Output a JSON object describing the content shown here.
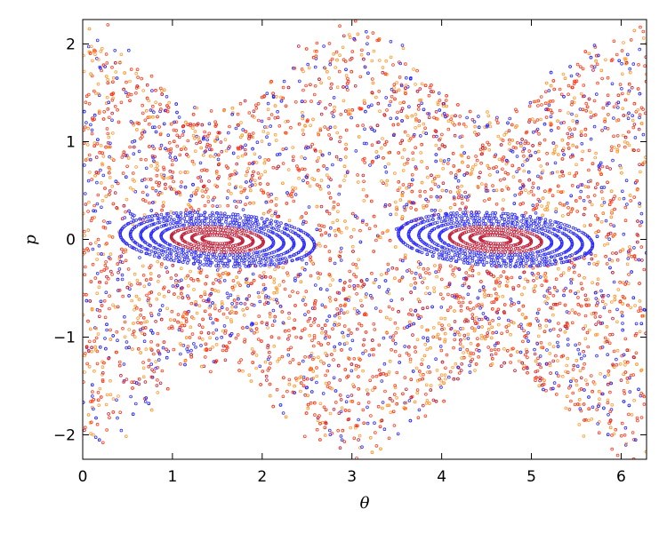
{
  "chart_data": {
    "type": "scatter",
    "title": "",
    "xlabel": "θ",
    "ylabel": "p",
    "xlim": [
      0,
      6.283
    ],
    "ylim": [
      -2.25,
      2.25
    ],
    "xticks": [
      0,
      1,
      2,
      3,
      4,
      5,
      6
    ],
    "xtick_labels": [
      "0",
      "1",
      "2",
      "3",
      "4",
      "5",
      "6"
    ],
    "yticks": [
      -2,
      -1,
      0,
      1,
      2
    ],
    "ytick_labels": [
      "−2",
      "−1",
      "0",
      "1",
      "2"
    ],
    "grid": false,
    "legend": "none",
    "marker": "open circle",
    "colors": [
      "#2a2aff",
      "#ff3a1a",
      "#ff9a30",
      "#c0203a"
    ],
    "series": [
      {
        "color": "#2a2aff",
        "description_values": {
          "islands": [
            {
              "x": [
                0.3,
                2.7
              ],
              "center": [
                1.5,
                0.0
              ],
              "p_halfwidth": 0.3
            },
            {
              "x": [
                3.4,
                5.8
              ],
              "center": [
                4.6,
                0.0
              ],
              "p_halfwidth": 0.3
            }
          ],
          "chaotic_band_p": [
            -1.6,
            1.6
          ]
        }
      },
      {
        "color": "#ff3a1a",
        "description_values": {
          "chaotic_band_p": [
            -2.2,
            2.2
          ]
        }
      },
      {
        "color": "#ff9a30",
        "description_values": {
          "chaotic_band_p": [
            -2.25,
            2.25
          ]
        }
      }
    ]
  }
}
